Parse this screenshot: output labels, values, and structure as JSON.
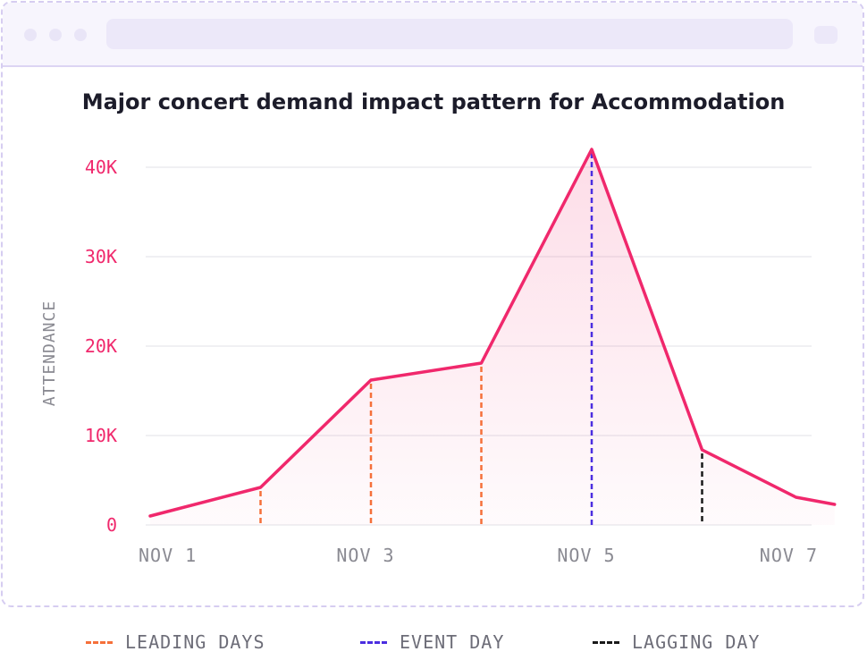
{
  "chart_data": {
    "type": "line",
    "title": "Major concert demand impact pattern for Accommodation",
    "ylabel": "ATTENDANCE",
    "xlabel": "",
    "ylim": [
      0,
      42000
    ],
    "x_ticks": [
      {
        "x": 0,
        "label": "NOV 1"
      },
      {
        "x": 2,
        "label": "NOV 3"
      },
      {
        "x": 4,
        "label": "NOV 5"
      },
      {
        "x": 6,
        "label": "NOV 7"
      }
    ],
    "y_ticks": [
      {
        "value": 0,
        "label": "0"
      },
      {
        "value": 10000,
        "label": "10K"
      },
      {
        "value": 20000,
        "label": "20K"
      },
      {
        "value": 30000,
        "label": "30K"
      },
      {
        "value": 40000,
        "label": "40K"
      }
    ],
    "series": [
      {
        "points": [
          {
            "x": 0,
            "y": 1000
          },
          {
            "x": 1,
            "y": 4200
          },
          {
            "x": 2,
            "y": 16200
          },
          {
            "x": 3,
            "y": 18100
          },
          {
            "x": 4,
            "y": 42000
          },
          {
            "x": 5,
            "y": 8400
          },
          {
            "x": 5.85,
            "y": 3100
          },
          {
            "x": 6.2,
            "y": 2300
          }
        ],
        "color": "#f0286c"
      }
    ],
    "markers": [
      {
        "x": 1,
        "y": 4200,
        "type": "leading"
      },
      {
        "x": 2,
        "y": 16200,
        "type": "leading"
      },
      {
        "x": 3,
        "y": 18100,
        "type": "leading"
      },
      {
        "x": 4,
        "y": 42000,
        "type": "event"
      },
      {
        "x": 5,
        "y": 8400,
        "type": "lagging"
      }
    ],
    "grid": true,
    "legend": [
      {
        "key": "leading",
        "label": "LEADING DAYS",
        "color": "#f5703a"
      },
      {
        "key": "event",
        "label": "EVENT DAY",
        "color": "#4b2ee0"
      },
      {
        "key": "lagging",
        "label": "LAGGING DAY",
        "color": "#1a1a1a"
      }
    ],
    "legend_position": "bottom",
    "colors": {
      "line": "#f0286c",
      "tick_y": "#f0286c",
      "tick_x": "#8a8a92",
      "grid": "#ebebef"
    }
  }
}
